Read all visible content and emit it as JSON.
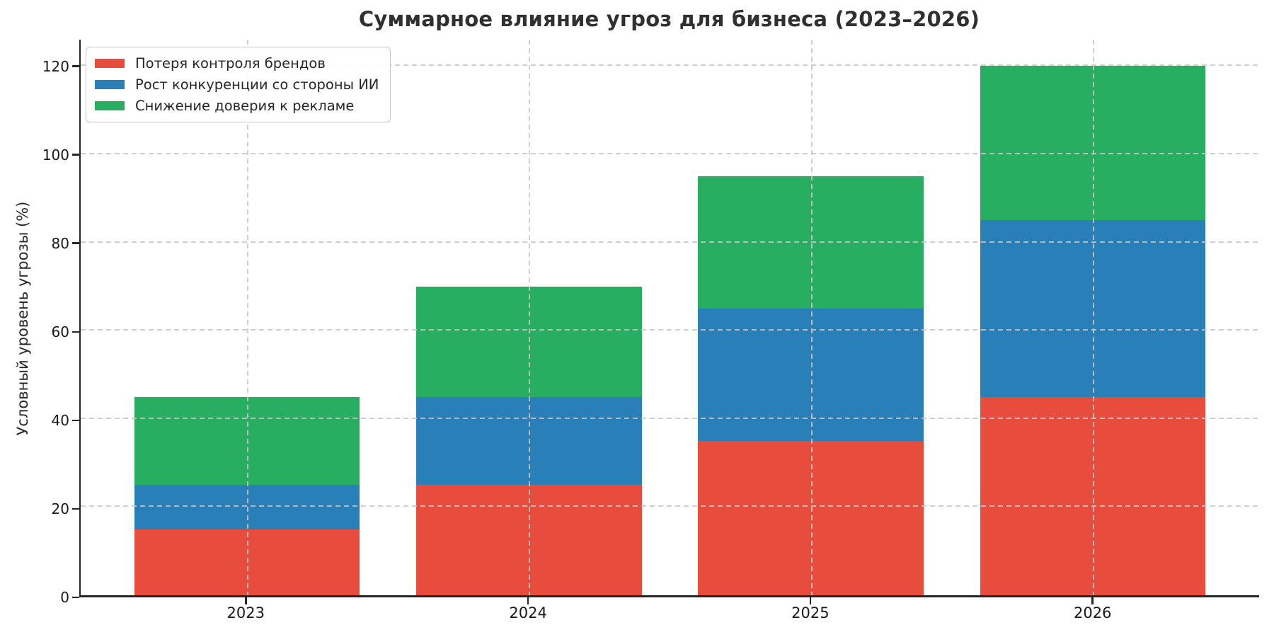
{
  "chart_data": {
    "type": "bar",
    "stacked": true,
    "title": "Суммарное влияние угроз для бизнеса (2023–2026)",
    "xlabel": "",
    "ylabel": "Условный уровень угрозы (%)",
    "categories": [
      "2023",
      "2024",
      "2025",
      "2026"
    ],
    "series": [
      {
        "name": "Потеря контроля брендов",
        "color": "#e74c3c",
        "values": [
          15,
          25,
          35,
          45
        ]
      },
      {
        "name": "Рост конкуренции со стороны ИИ",
        "color": "#2980b9",
        "values": [
          10,
          20,
          30,
          40
        ]
      },
      {
        "name": "Снижение доверия к рекламе",
        "color": "#27ae60",
        "values": [
          20,
          25,
          30,
          35
        ]
      }
    ],
    "stack_totals": [
      45,
      70,
      95,
      120
    ],
    "y_ticks": [
      0,
      20,
      40,
      60,
      80,
      100,
      120
    ],
    "ylim": [
      0,
      126
    ],
    "grid": "dashed",
    "legend_position": "upper-left"
  }
}
